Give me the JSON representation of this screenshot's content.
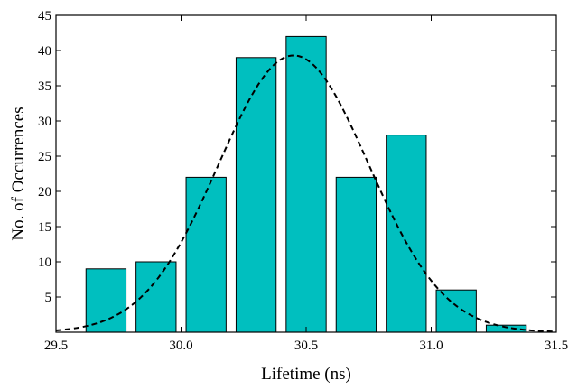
{
  "chart_data": {
    "type": "bar",
    "title": "",
    "xlabel": "Lifetime (ns)",
    "ylabel": "No. of Occurrences",
    "xlim": [
      29.5,
      31.5
    ],
    "ylim": [
      0,
      45
    ],
    "xticks": [
      29.5,
      30.0,
      30.5,
      31.0,
      31.5
    ],
    "xtick_labels": [
      "29.5",
      "30.0",
      "30.5",
      "31.0",
      "31.5"
    ],
    "yticks": [
      5,
      10,
      15,
      20,
      25,
      30,
      35,
      40,
      45
    ],
    "ytick_labels": [
      "5",
      "10",
      "15",
      "20",
      "25",
      "30",
      "35",
      "40",
      "45"
    ],
    "grid": false,
    "bar_width": 0.16,
    "bar_color": "#00BFBF",
    "categories": [
      29.7,
      29.9,
      30.1,
      30.3,
      30.5,
      30.7,
      30.9,
      31.1,
      31.3
    ],
    "values": [
      9,
      10,
      22,
      39,
      42,
      22,
      28,
      6,
      1
    ],
    "fit_curve": {
      "style": "dashed",
      "color": "#000000",
      "type": "gaussian",
      "mean": 30.45,
      "sigma": 0.3,
      "peak": 39.3
    }
  }
}
